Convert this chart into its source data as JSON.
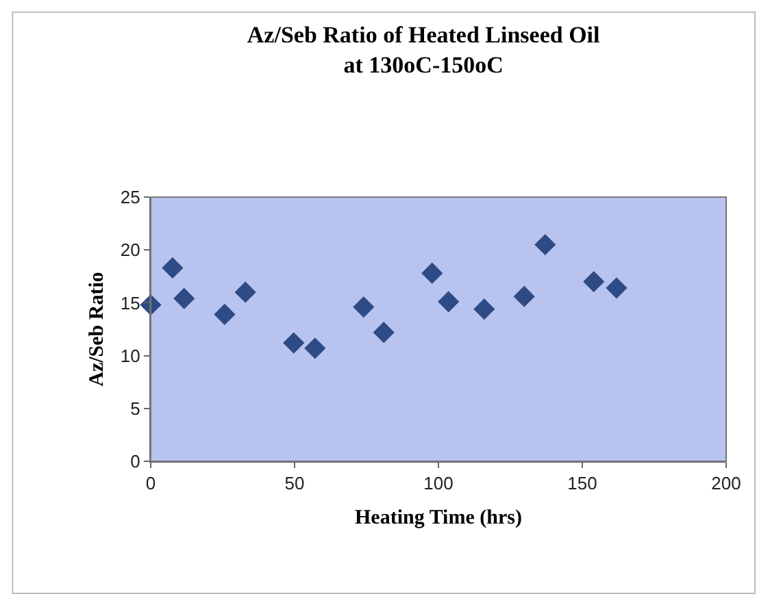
{
  "chart_data": {
    "type": "scatter",
    "title": "Az/Seb Ratio of Heated Linseed Oil\nat 130oC-150oC",
    "xlabel": "Heating Time (hrs)",
    "ylabel": "Az/Seb Ratio",
    "x": [
      0,
      7.6,
      11.6,
      25.7,
      32.9,
      49.7,
      57.1,
      74,
      81,
      97.8,
      103.5,
      115.9,
      129.8,
      137.1,
      154,
      161.9
    ],
    "series": [
      {
        "color": "#2e4b86",
        "values": [
          14.8,
          18.3,
          15.4,
          13.9,
          16.0,
          11.2,
          10.7,
          14.6,
          12.2,
          17.8,
          15.1,
          14.4,
          15.6,
          20.5,
          17.0,
          16.4
        ]
      }
    ],
    "xlim": [
      0,
      200
    ],
    "xticks": [
      0,
      50,
      100,
      150,
      200
    ],
    "ylim": [
      0,
      25
    ],
    "yticks": [
      0,
      5,
      10,
      15,
      20,
      25
    ],
    "grid": false,
    "marker": "diamond"
  }
}
